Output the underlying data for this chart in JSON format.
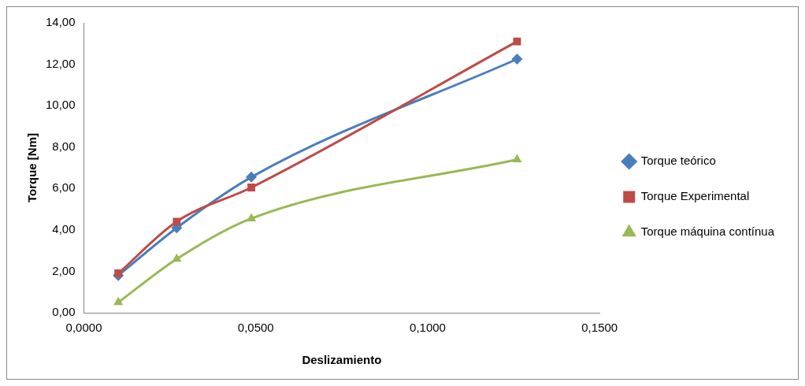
{
  "chart_data": {
    "type": "line",
    "xlabel": "Deslizamiento",
    "ylabel": "Torque [Nm]",
    "xlim": [
      0,
      0.15
    ],
    "xticks": [
      {
        "value": 0,
        "label": "0,0000"
      },
      {
        "value": 0.05,
        "label": "0,0500"
      },
      {
        "value": 0.1,
        "label": "0,1000"
      },
      {
        "value": 0.15,
        "label": "0,1500"
      }
    ],
    "ylim": [
      0,
      14
    ],
    "yticks": [
      {
        "value": 0,
        "label": "0,00"
      },
      {
        "value": 2,
        "label": "2,00"
      },
      {
        "value": 4,
        "label": "4,00"
      },
      {
        "value": 6,
        "label": "6,00"
      },
      {
        "value": 8,
        "label": "8,00"
      },
      {
        "value": 10,
        "label": "10,00"
      },
      {
        "value": 12,
        "label": "12,00"
      },
      {
        "value": 14,
        "label": "14,00"
      }
    ],
    "x": [
      0.01,
      0.027,
      0.0487,
      0.126
    ],
    "series": [
      {
        "name": "Torque teórico",
        "color": "#4a7ebb",
        "marker": "diamond",
        "values": [
          1.8,
          4.1,
          6.55,
          12.25
        ]
      },
      {
        "name": "Torque Experimental",
        "color": "#be4b48",
        "marker": "square",
        "values": [
          1.9,
          4.4,
          6.05,
          13.1
        ]
      },
      {
        "name": "Torque máquina contínua",
        "color": "#98b954",
        "marker": "triangle",
        "values": [
          0.5,
          2.6,
          4.55,
          7.4
        ]
      }
    ],
    "grid": false,
    "legend": "right"
  }
}
